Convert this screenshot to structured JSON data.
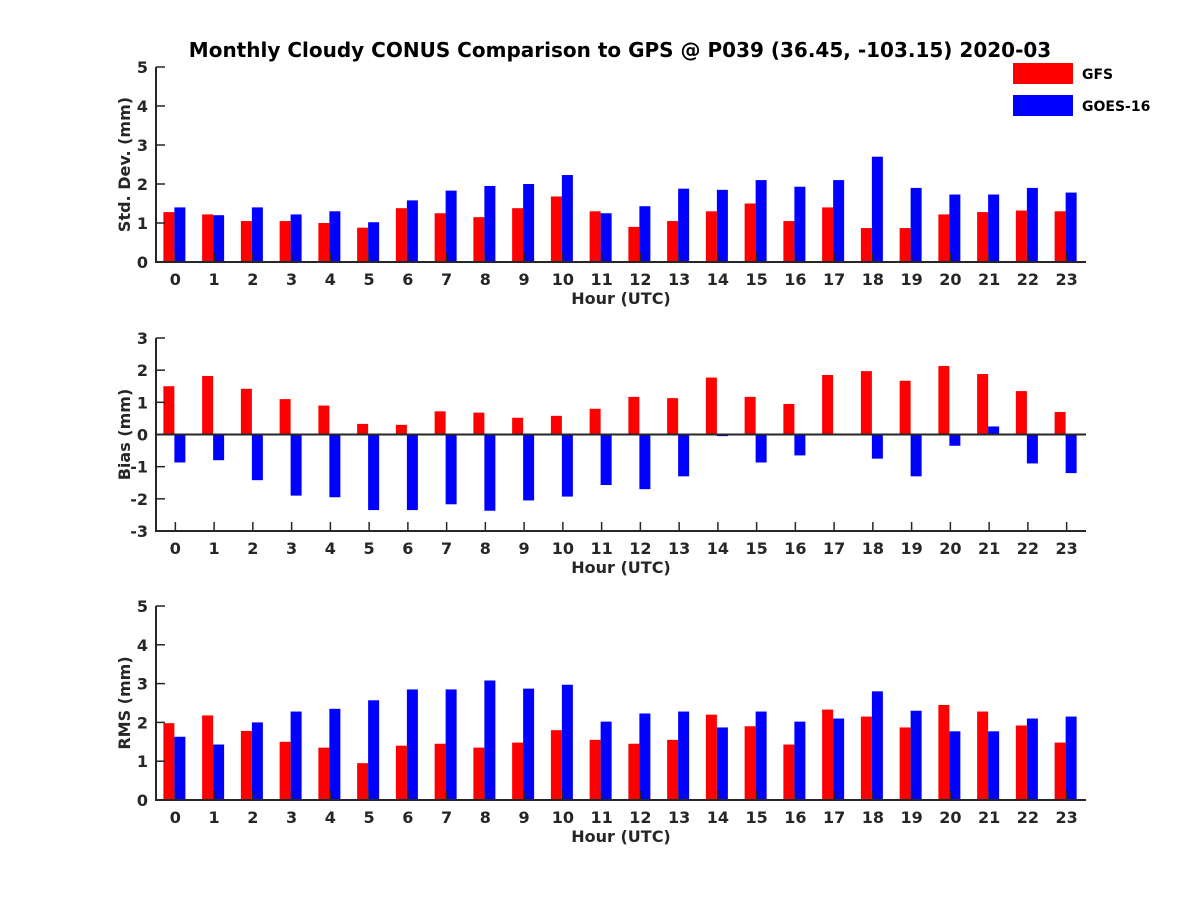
{
  "title": "Monthly Cloudy CONUS Comparison to GPS @ P039 (36.45, -103.15) 2020-03",
  "legend": {
    "placement": "top-right",
    "entries": [
      {
        "label": "GFS",
        "color": "#ff0000"
      },
      {
        "label": "GOES-16",
        "color": "#0000ff"
      }
    ]
  },
  "chart_data": [
    {
      "type": "bar",
      "xlabel": "Hour (UTC)",
      "ylabel": "Std. Dev. (mm)",
      "ylim": [
        0,
        5
      ],
      "yticks": [
        0,
        1,
        2,
        3,
        4,
        5
      ],
      "categories": [
        "0",
        "1",
        "2",
        "3",
        "4",
        "5",
        "6",
        "7",
        "8",
        "9",
        "10",
        "11",
        "12",
        "13",
        "14",
        "15",
        "16",
        "17",
        "18",
        "19",
        "20",
        "21",
        "22",
        "23"
      ],
      "series": [
        {
          "name": "GFS",
          "color": "#ff0000",
          "values": [
            1.28,
            1.22,
            1.05,
            1.05,
            1.0,
            0.88,
            1.38,
            1.25,
            1.15,
            1.38,
            1.68,
            1.3,
            0.9,
            1.05,
            1.3,
            1.5,
            1.05,
            1.4,
            0.87,
            0.87,
            1.22,
            1.28,
            1.32,
            1.3
          ]
        },
        {
          "name": "GOES-16",
          "color": "#0000ff",
          "values": [
            1.4,
            1.2,
            1.4,
            1.22,
            1.3,
            1.02,
            1.58,
            1.83,
            1.95,
            2.0,
            2.23,
            1.25,
            1.43,
            1.88,
            1.85,
            2.1,
            1.93,
            2.1,
            2.7,
            1.9,
            1.73,
            1.73,
            1.9,
            1.78
          ]
        }
      ]
    },
    {
      "type": "bar",
      "xlabel": "Hour (UTC)",
      "ylabel": "Bias (mm)",
      "ylim": [
        -3,
        3
      ],
      "yticks": [
        -3,
        -2,
        -1,
        0,
        1,
        2,
        3
      ],
      "zero_line": true,
      "categories": [
        "0",
        "1",
        "2",
        "3",
        "4",
        "5",
        "6",
        "7",
        "8",
        "9",
        "10",
        "11",
        "12",
        "13",
        "14",
        "15",
        "16",
        "17",
        "18",
        "19",
        "20",
        "21",
        "22",
        "23"
      ],
      "series": [
        {
          "name": "GFS",
          "color": "#ff0000",
          "values": [
            1.5,
            1.82,
            1.42,
            1.1,
            0.9,
            0.33,
            0.3,
            0.72,
            0.68,
            0.52,
            0.58,
            0.8,
            1.17,
            1.13,
            1.77,
            1.17,
            0.95,
            1.85,
            1.97,
            1.67,
            2.13,
            1.88,
            1.35,
            0.7
          ]
        },
        {
          "name": "GOES-16",
          "color": "#0000ff",
          "values": [
            -0.87,
            -0.8,
            -1.42,
            -1.9,
            -1.95,
            -2.35,
            -2.35,
            -2.17,
            -2.37,
            -2.05,
            -1.93,
            -1.57,
            -1.7,
            -1.3,
            -0.05,
            -0.87,
            -0.65,
            0.02,
            -0.75,
            -1.3,
            -0.35,
            0.25,
            -0.9,
            -1.2
          ]
        }
      ]
    },
    {
      "type": "bar",
      "xlabel": "Hour (UTC)",
      "ylabel": "RMS (mm)",
      "ylim": [
        0,
        5
      ],
      "yticks": [
        0,
        1,
        2,
        3,
        4,
        5
      ],
      "categories": [
        "0",
        "1",
        "2",
        "3",
        "4",
        "5",
        "6",
        "7",
        "8",
        "9",
        "10",
        "11",
        "12",
        "13",
        "14",
        "15",
        "16",
        "17",
        "18",
        "19",
        "20",
        "21",
        "22",
        "23"
      ],
      "series": [
        {
          "name": "GFS",
          "color": "#ff0000",
          "values": [
            1.98,
            2.18,
            1.78,
            1.5,
            1.35,
            0.95,
            1.4,
            1.45,
            1.35,
            1.48,
            1.8,
            1.55,
            1.45,
            1.55,
            2.2,
            1.9,
            1.43,
            2.33,
            2.15,
            1.87,
            2.45,
            2.28,
            1.92,
            1.48
          ]
        },
        {
          "name": "GOES-16",
          "color": "#0000ff",
          "values": [
            1.63,
            1.43,
            2.0,
            2.28,
            2.35,
            2.57,
            2.85,
            2.85,
            3.08,
            2.87,
            2.97,
            2.02,
            2.23,
            2.28,
            1.87,
            2.28,
            2.02,
            2.1,
            2.8,
            2.3,
            1.77,
            1.77,
            2.1,
            2.15
          ]
        }
      ]
    }
  ]
}
